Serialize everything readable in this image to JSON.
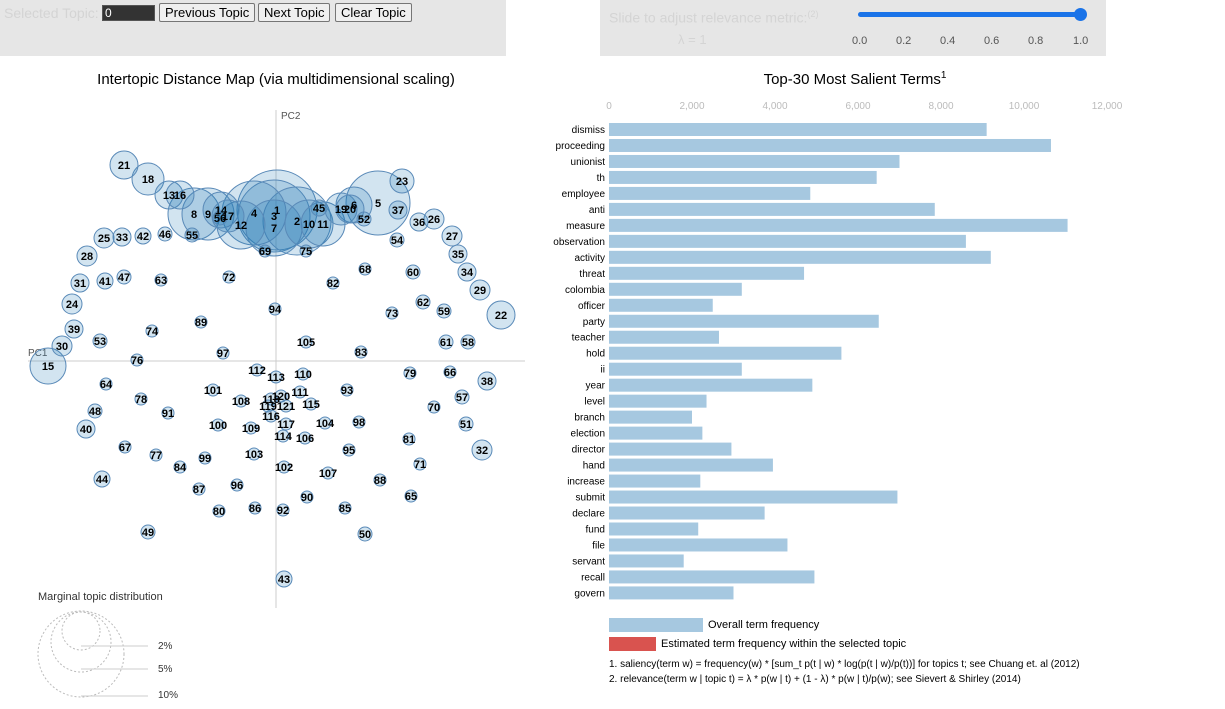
{
  "controls": {
    "selected_topic_label": "Selected Topic:",
    "selected_topic_value": "0",
    "prev_button": "Previous Topic",
    "next_button": "Next Topic",
    "clear_button": "Clear Topic",
    "slider_label": "Slide to adjust relevance metric:",
    "slider_sup": "(2)",
    "lambda_text": "λ = 1",
    "slider_value": 1.0,
    "slider_ticks": [
      "0.0",
      "0.2",
      "0.4",
      "0.6",
      "0.8",
      "1.0"
    ],
    "accent_color": "#1a73e8"
  },
  "chart_data": [
    {
      "type": "scatter",
      "title": "Intertopic Distance Map (via multidimensional scaling)",
      "axis_labels": [
        "PC1",
        "PC2"
      ],
      "legend_title": "Marginal topic distribution",
      "legend_sizes": [
        "2%",
        "5%",
        "10%"
      ],
      "circle_color": "#1f77b4",
      "topics": [
        {
          "id": 1,
          "x": 1,
          "y": 151,
          "r": 40
        },
        {
          "id": 2,
          "x": 21,
          "y": 140,
          "r": 34
        },
        {
          "id": 3,
          "x": -2,
          "y": 145,
          "r": 36
        },
        {
          "id": 4,
          "x": -22,
          "y": 148,
          "r": 32
        },
        {
          "id": 5,
          "x": 102,
          "y": 158,
          "r": 32
        },
        {
          "id": 6,
          "x": 78,
          "y": 156,
          "r": 18
        },
        {
          "id": 7,
          "x": -2,
          "y": 133,
          "r": 28
        },
        {
          "id": 8,
          "x": -82,
          "y": 147,
          "r": 26
        },
        {
          "id": 9,
          "x": -68,
          "y": 147,
          "r": 26
        },
        {
          "id": 10,
          "x": 33,
          "y": 137,
          "r": 24
        },
        {
          "id": 11,
          "x": 47,
          "y": 137,
          "r": 22
        },
        {
          "id": 12,
          "x": -35,
          "y": 136,
          "r": 24
        },
        {
          "id": 13,
          "x": -107,
          "y": 166,
          "r": 14
        },
        {
          "id": 14,
          "x": -55,
          "y": 151,
          "r": 18
        },
        {
          "id": 15,
          "x": -228,
          "y": -5,
          "r": 18
        },
        {
          "id": 16,
          "x": -96,
          "y": 166,
          "r": 14
        },
        {
          "id": 17,
          "x": -48,
          "y": 145,
          "r": 16
        },
        {
          "id": 18,
          "x": -128,
          "y": 182,
          "r": 16
        },
        {
          "id": 19,
          "x": 65,
          "y": 152,
          "r": 16
        },
        {
          "id": 20,
          "x": 74,
          "y": 152,
          "r": 14
        },
        {
          "id": 21,
          "x": -152,
          "y": 196,
          "r": 14
        },
        {
          "id": 22,
          "x": 225,
          "y": 46,
          "r": 14
        },
        {
          "id": 23,
          "x": 126,
          "y": 180,
          "r": 12
        },
        {
          "id": 24,
          "x": -204,
          "y": 57,
          "r": 10
        },
        {
          "id": 25,
          "x": -172,
          "y": 123,
          "r": 10
        },
        {
          "id": 26,
          "x": 158,
          "y": 142,
          "r": 10
        },
        {
          "id": 27,
          "x": 176,
          "y": 125,
          "r": 10
        },
        {
          "id": 28,
          "x": -189,
          "y": 105,
          "r": 10
        },
        {
          "id": 29,
          "x": 204,
          "y": 71,
          "r": 10
        },
        {
          "id": 30,
          "x": -214,
          "y": 15,
          "r": 10
        },
        {
          "id": 31,
          "x": -196,
          "y": 78,
          "r": 9
        },
        {
          "id": 32,
          "x": 206,
          "y": -89,
          "r": 10
        },
        {
          "id": 33,
          "x": -154,
          "y": 124,
          "r": 9
        },
        {
          "id": 34,
          "x": 191,
          "y": 89,
          "r": 9
        },
        {
          "id": 35,
          "x": 182,
          "y": 107,
          "r": 9
        },
        {
          "id": 36,
          "x": 143,
          "y": 139,
          "r": 9
        },
        {
          "id": 37,
          "x": 122,
          "y": 151,
          "r": 9
        },
        {
          "id": 38,
          "x": 211,
          "y": -20,
          "r": 9
        },
        {
          "id": 39,
          "x": -202,
          "y": 32,
          "r": 9
        },
        {
          "id": 40,
          "x": -190,
          "y": -68,
          "r": 9
        },
        {
          "id": 41,
          "x": -171,
          "y": 80,
          "r": 8
        },
        {
          "id": 42,
          "x": -133,
          "y": 125,
          "r": 8
        },
        {
          "id": 43,
          "x": 8,
          "y": -218,
          "r": 8
        },
        {
          "id": 44,
          "x": -174,
          "y": -118,
          "r": 8
        },
        {
          "id": 45,
          "x": 43,
          "y": 153,
          "r": 8
        },
        {
          "id": 46,
          "x": -111,
          "y": 127,
          "r": 7
        },
        {
          "id": 47,
          "x": -152,
          "y": 84,
          "r": 7
        },
        {
          "id": 48,
          "x": -181,
          "y": -50,
          "r": 7
        },
        {
          "id": 49,
          "x": -128,
          "y": -171,
          "r": 7
        },
        {
          "id": 50,
          "x": 89,
          "y": -173,
          "r": 7
        },
        {
          "id": 51,
          "x": 190,
          "y": -63,
          "r": 7
        },
        {
          "id": 52,
          "x": 88,
          "y": 142,
          "r": 7
        },
        {
          "id": 53,
          "x": -176,
          "y": 20,
          "r": 7
        },
        {
          "id": 54,
          "x": 121,
          "y": 121,
          "r": 7
        },
        {
          "id": 55,
          "x": -84,
          "y": 126,
          "r": 7
        },
        {
          "id": 56,
          "x": -56,
          "y": 143,
          "r": 7
        },
        {
          "id": 57,
          "x": 186,
          "y": -36,
          "r": 7
        },
        {
          "id": 58,
          "x": 192,
          "y": 19,
          "r": 7
        },
        {
          "id": 59,
          "x": 168,
          "y": 50,
          "r": 7
        },
        {
          "id": 60,
          "x": 137,
          "y": 89,
          "r": 7
        },
        {
          "id": 61,
          "x": 170,
          "y": 19,
          "r": 7
        },
        {
          "id": 62,
          "x": 147,
          "y": 59,
          "r": 7
        },
        {
          "id": 63,
          "x": -115,
          "y": 81,
          "r": 6
        },
        {
          "id": 64,
          "x": -170,
          "y": -23,
          "r": 6
        },
        {
          "id": 65,
          "x": 135,
          "y": -135,
          "r": 6
        },
        {
          "id": 66,
          "x": 174,
          "y": -11,
          "r": 6
        },
        {
          "id": 67,
          "x": -151,
          "y": -86,
          "r": 6
        },
        {
          "id": 68,
          "x": 89,
          "y": 92,
          "r": 6
        },
        {
          "id": 69,
          "x": -11,
          "y": 110,
          "r": 6
        },
        {
          "id": 70,
          "x": 158,
          "y": -46,
          "r": 6
        },
        {
          "id": 71,
          "x": 144,
          "y": -103,
          "r": 6
        },
        {
          "id": 72,
          "x": -47,
          "y": 84,
          "r": 6
        },
        {
          "id": 73,
          "x": 116,
          "y": 48,
          "r": 6
        },
        {
          "id": 74,
          "x": -124,
          "y": 30,
          "r": 6
        },
        {
          "id": 75,
          "x": 30,
          "y": 110,
          "r": 6
        },
        {
          "id": 76,
          "x": -139,
          "y": 1,
          "r": 6
        },
        {
          "id": 77,
          "x": -120,
          "y": -94,
          "r": 6
        },
        {
          "id": 78,
          "x": -135,
          "y": -38,
          "r": 6
        },
        {
          "id": 79,
          "x": 134,
          "y": -12,
          "r": 6
        },
        {
          "id": 80,
          "x": -57,
          "y": -150,
          "r": 6
        },
        {
          "id": 81,
          "x": 133,
          "y": -78,
          "r": 6
        },
        {
          "id": 82,
          "x": 57,
          "y": 78,
          "r": 6
        },
        {
          "id": 83,
          "x": 85,
          "y": 9,
          "r": 6
        },
        {
          "id": 84,
          "x": -96,
          "y": -106,
          "r": 6
        },
        {
          "id": 85,
          "x": 69,
          "y": -147,
          "r": 6
        },
        {
          "id": 86,
          "x": -21,
          "y": -147,
          "r": 6
        },
        {
          "id": 87,
          "x": -77,
          "y": -128,
          "r": 6
        },
        {
          "id": 88,
          "x": 104,
          "y": -119,
          "r": 6
        },
        {
          "id": 89,
          "x": -75,
          "y": 39,
          "r": 6
        },
        {
          "id": 90,
          "x": 31,
          "y": -136,
          "r": 6
        },
        {
          "id": 91,
          "x": -108,
          "y": -52,
          "r": 6
        },
        {
          "id": 92,
          "x": 7,
          "y": -149,
          "r": 6
        },
        {
          "id": 93,
          "x": 71,
          "y": -29,
          "r": 6
        },
        {
          "id": 94,
          "x": -1,
          "y": 52,
          "r": 6
        },
        {
          "id": 95,
          "x": 73,
          "y": -89,
          "r": 6
        },
        {
          "id": 96,
          "x": -39,
          "y": -124,
          "r": 6
        },
        {
          "id": 97,
          "x": -53,
          "y": 8,
          "r": 6
        },
        {
          "id": 98,
          "x": 83,
          "y": -61,
          "r": 6
        },
        {
          "id": 99,
          "x": -71,
          "y": -97,
          "r": 6
        },
        {
          "id": 100,
          "x": -58,
          "y": -64,
          "r": 6
        },
        {
          "id": 101,
          "x": -63,
          "y": -29,
          "r": 6
        },
        {
          "id": 102,
          "x": 8,
          "y": -106,
          "r": 6
        },
        {
          "id": 103,
          "x": -22,
          "y": -93,
          "r": 6
        },
        {
          "id": 104,
          "x": 49,
          "y": -62,
          "r": 6
        },
        {
          "id": 105,
          "x": 30,
          "y": 19,
          "r": 6
        },
        {
          "id": 106,
          "x": 29,
          "y": -77,
          "r": 6
        },
        {
          "id": 107,
          "x": 52,
          "y": -112,
          "r": 6
        },
        {
          "id": 108,
          "x": -35,
          "y": -40,
          "r": 6
        },
        {
          "id": 109,
          "x": -25,
          "y": -67,
          "r": 6
        },
        {
          "id": 110,
          "x": 27,
          "y": -13,
          "r": 6
        },
        {
          "id": 111,
          "x": 24,
          "y": -31,
          "r": 6
        },
        {
          "id": 112,
          "x": -19,
          "y": -9,
          "r": 6
        },
        {
          "id": 113,
          "x": 0,
          "y": -16,
          "r": 6
        },
        {
          "id": 114,
          "x": 7,
          "y": -75,
          "r": 6
        },
        {
          "id": 115,
          "x": 35,
          "y": -43,
          "r": 6
        },
        {
          "id": 116,
          "x": -5,
          "y": -55,
          "r": 6
        },
        {
          "id": 117,
          "x": 10,
          "y": -63,
          "r": 6
        },
        {
          "id": 118,
          "x": -5,
          "y": -38,
          "r": 6
        },
        {
          "id": 119,
          "x": -8,
          "y": -45,
          "r": 6
        },
        {
          "id": 120,
          "x": 5,
          "y": -35,
          "r": 6
        },
        {
          "id": 121,
          "x": 10,
          "y": -45,
          "r": 6
        }
      ]
    },
    {
      "type": "bar",
      "title": "Top-30 Most Salient Terms",
      "title_sup": "1",
      "xlim": [
        0,
        12000
      ],
      "xticks": [
        "0",
        "2,000",
        "4,000",
        "6,000",
        "8,000",
        "10,000",
        "12,000"
      ],
      "categories": [
        "dismiss",
        "proceeding",
        "unionist",
        "th",
        "employee",
        "anti",
        "measure",
        "observation",
        "activity",
        "threat",
        "colombia",
        "officer",
        "party",
        "teacher",
        "hold",
        "ii",
        "year",
        "level",
        "branch",
        "election",
        "director",
        "hand",
        "increase",
        "submit",
        "declare",
        "fund",
        "file",
        "servant",
        "recall",
        "govern"
      ],
      "values": [
        9100,
        10650,
        7000,
        6450,
        4850,
        7850,
        11050,
        8600,
        9200,
        4700,
        3200,
        2500,
        6500,
        2650,
        5600,
        3200,
        4900,
        2350,
        2000,
        2250,
        2950,
        3950,
        2200,
        6950,
        3750,
        2150,
        4300,
        1800,
        4950,
        3000
      ],
      "bar_color": "#a6c8e0",
      "selected_color": "#d9534f",
      "legend": [
        "Overall term frequency",
        "Estimated term frequency within the selected topic"
      ],
      "footnotes": [
        "1. saliency(term w) = frequency(w) * [sum_t p(t | w) * log(p(t | w)/p(t))] for topics t; see Chuang et. al (2012)",
        "2. relevance(term w | topic t) = λ * p(w | t) + (1 - λ) * p(w | t)/p(w); see Sievert & Shirley (2014)"
      ]
    }
  ]
}
